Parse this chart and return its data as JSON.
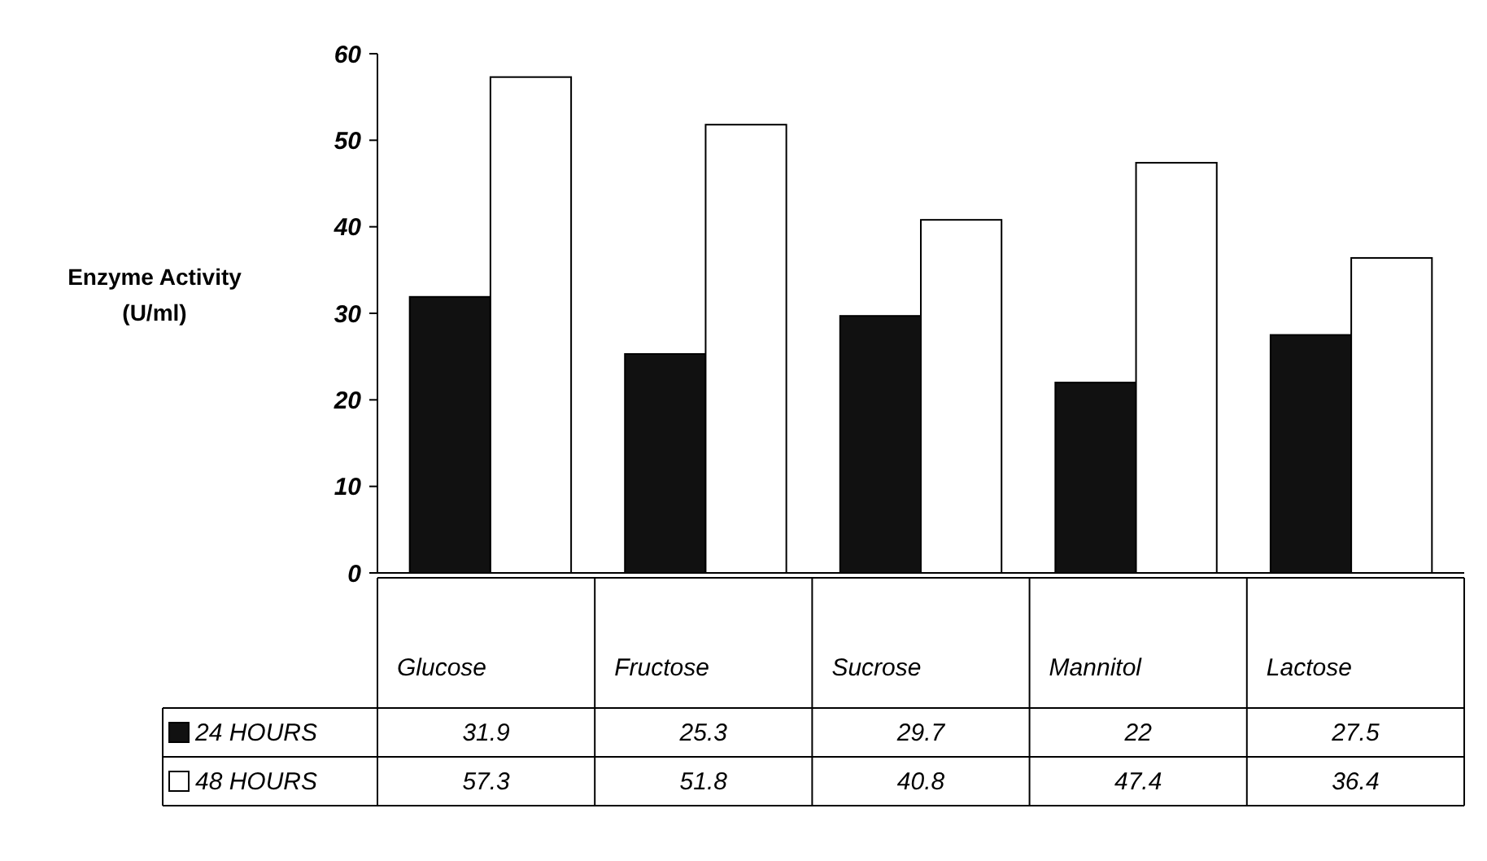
{
  "chart_data": {
    "type": "bar",
    "ylabel": "Enzyme Activity\n(U/ml)",
    "categories": [
      "Glucose",
      "Fructose",
      "Sucrose",
      "Mannitol",
      "Lactose"
    ],
    "series": [
      {
        "name": "24 HOURS",
        "color": "#111111",
        "values": [
          31.9,
          25.3,
          29.7,
          22,
          27.5
        ]
      },
      {
        "name": "48 HOURS",
        "color": "#ffffff",
        "values": [
          57.3,
          51.8,
          40.8,
          47.4,
          36.4
        ]
      }
    ],
    "ylim": [
      0,
      60
    ],
    "yticks": [
      0,
      10,
      20,
      30,
      40,
      50,
      60
    ],
    "grid": false,
    "data_labels": true,
    "legend": "bottom"
  }
}
